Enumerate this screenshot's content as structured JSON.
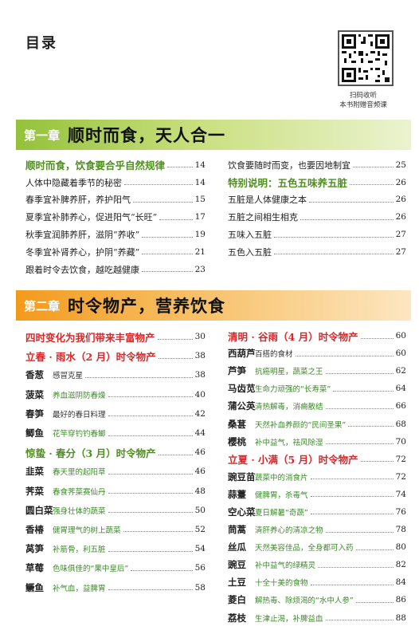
{
  "page": {
    "title": "目录"
  },
  "qr": {
    "caption_line1": "扫码收听",
    "caption_line2": "本书附赠音频课"
  },
  "chapter1": {
    "number": "第一章",
    "title": "顺时而食，天人合一",
    "left": [
      {
        "text": "顺时而食，饮食要合乎自然规律",
        "page": "14",
        "style": "h-green"
      },
      {
        "text": "人体中隐藏着季节的秘密",
        "page": "14"
      },
      {
        "text": "春季宜补脾养肝，养护阳气",
        "page": "15"
      },
      {
        "text": "夏季宜补肺养心，促进阳气“长旺”",
        "page": "17"
      },
      {
        "text": "秋季宜润肺养肝，滋阴“养收”",
        "page": "19"
      },
      {
        "text": "冬季宜补肾养心，护阴“养藏”",
        "page": "21"
      },
      {
        "text": "跟着时令去饮食，越吃越健康",
        "page": "23"
      }
    ],
    "right": [
      {
        "text": "饮食要随时而变，也要因地制宜",
        "page": "25"
      },
      {
        "text": "特别说明：五色五味养五脏",
        "page": "26",
        "style": "h-green"
      },
      {
        "text": "五脏是人体健康之本",
        "page": "26"
      },
      {
        "text": "五脏之间相生相克",
        "page": "26"
      },
      {
        "text": "五味入五脏",
        "page": "27"
      },
      {
        "text": "五色入五脏",
        "page": "27"
      }
    ]
  },
  "chapter2": {
    "number": "第二章",
    "title": "时令物产，营养饮食",
    "left": [
      {
        "text": "四时变化为我们带来丰富物产",
        "page": "30",
        "style": "h-red"
      },
      {
        "text": "立春 · 雨水（2 月）时令物产",
        "page": "38",
        "style": "h-red"
      },
      {
        "name": "香葱",
        "desc": "感冒克星",
        "page": "38",
        "dc": "r"
      },
      {
        "name": "菠菜",
        "desc": "养血滋阴防春燥",
        "page": "40",
        "dc": "g"
      },
      {
        "name": "春笋",
        "desc": "最好的春日料理",
        "page": "42",
        "dc": "r"
      },
      {
        "name": "鲫鱼",
        "desc": "花竿穿钓钓春鲫",
        "page": "44",
        "dc": "g"
      },
      {
        "text": "惊蛰 · 春分（3 月）时令物产",
        "page": "46",
        "style": "h-green"
      },
      {
        "name": "韭菜",
        "desc": "春天里的起阳草",
        "page": "46",
        "dc": "g"
      },
      {
        "name": "荠菜",
        "desc": "春食荠菜赛仙丹",
        "page": "48",
        "dc": "g"
      },
      {
        "name": "圆白菜",
        "desc": "强身壮体的蔬菜",
        "page": "50",
        "dc": "g"
      },
      {
        "name": "香椿",
        "desc": "健胃理气的树上蔬菜",
        "page": "52",
        "dc": "g"
      },
      {
        "name": "莴笋",
        "desc": "补筋骨，利五脏",
        "page": "54",
        "dc": "g"
      },
      {
        "name": "草莓",
        "desc": "色味俱佳的“果中皇后”",
        "page": "56",
        "dc": "g"
      },
      {
        "name": "鳜鱼",
        "desc": "补气血，益脾胃",
        "page": "58",
        "dc": "g"
      }
    ],
    "right": [
      {
        "text": "清明 · 谷雨（4 月）时令物产",
        "page": "60",
        "style": "h-red"
      },
      {
        "name": "西葫芦",
        "desc": "百搭的食材",
        "page": "60",
        "dc": "r"
      },
      {
        "name": "芦笋",
        "desc": "抗癌明星，蔬菜之王",
        "page": "62",
        "dc": "g"
      },
      {
        "name": "马齿苋",
        "desc": "生命力顽强的“长寿菜”",
        "page": "64",
        "dc": "g"
      },
      {
        "name": "蒲公英",
        "desc": "清热解毒，消痈散结",
        "page": "66",
        "dc": "g"
      },
      {
        "name": "桑葚",
        "desc": "天然补血养颜的“民间圣果”",
        "page": "68",
        "dc": "g"
      },
      {
        "name": "樱桃",
        "desc": "补中益气，祛风除湿",
        "page": "70",
        "dc": "g"
      },
      {
        "text": "立夏 · 小满（5 月）时令物产",
        "page": "72",
        "style": "h-red"
      },
      {
        "name": "豌豆苗",
        "desc": "蔬菜中的消食片",
        "page": "72",
        "dc": "g"
      },
      {
        "name": "蒜薹",
        "desc": "健脾胃，杀毒气",
        "page": "74",
        "dc": "g"
      },
      {
        "name": "空心菜",
        "desc": "夏日解暑“奇蔬”",
        "page": "76",
        "dc": "g"
      },
      {
        "name": "茼蒿",
        "desc": "清肝养心的清凉之物",
        "page": "78",
        "dc": "g"
      },
      {
        "name": "丝瓜",
        "desc": "天然美容佳品，全身都可入药",
        "page": "80",
        "dc": "g"
      },
      {
        "name": "豌豆",
        "desc": "补中益气的绿精灵",
        "page": "82",
        "dc": "g"
      },
      {
        "name": "土豆",
        "desc": "十全十美的食物",
        "page": "84",
        "dc": "g"
      },
      {
        "name": "菱白",
        "desc": "解热毒、除烦渴的“水中人参”",
        "page": "86",
        "dc": "g"
      },
      {
        "name": "荔枝",
        "desc": "生津止渴，补脾益血",
        "page": "88",
        "dc": "g"
      }
    ]
  }
}
